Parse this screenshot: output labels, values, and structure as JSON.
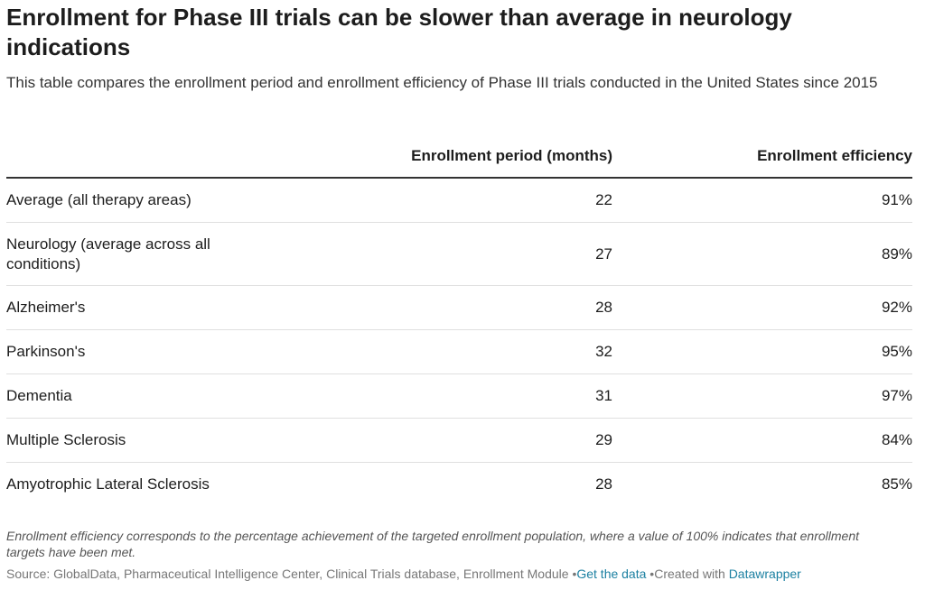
{
  "header": {
    "title": "Enrollment for Phase III trials can be slower than average in neurology indications",
    "subtitle": "This table compares the enrollment period and enrollment efficiency of Phase III trials conducted in the United States since 2015"
  },
  "table": {
    "columns": [
      "",
      "Enrollment period (months)",
      "Enrollment efficiency"
    ],
    "rows": [
      [
        "Average (all therapy areas)",
        "22",
        "91%"
      ],
      [
        "Neurology (average across all conditions)",
        "27",
        "89%"
      ],
      [
        "Alzheimer's",
        "28",
        "92%"
      ],
      [
        "Parkinson's",
        "32",
        "95%"
      ],
      [
        "Dementia",
        "31",
        "97%"
      ],
      [
        "Multiple Sclerosis",
        "29",
        "84%"
      ],
      [
        "Amyotrophic Lateral Sclerosis",
        "28",
        "85%"
      ]
    ]
  },
  "footer": {
    "note": "Enrollment efficiency corresponds to the percentage achievement of the targeted enrollment population, where a value of 100% indicates that enrollment targets have been met.",
    "source": "Source: GlobalData, Pharmaceutical Intelligence Center, Clinical Trials database, Enrollment Module",
    "get_data": "Get the data",
    "created": "Created with",
    "tool": "Datawrapper"
  }
}
